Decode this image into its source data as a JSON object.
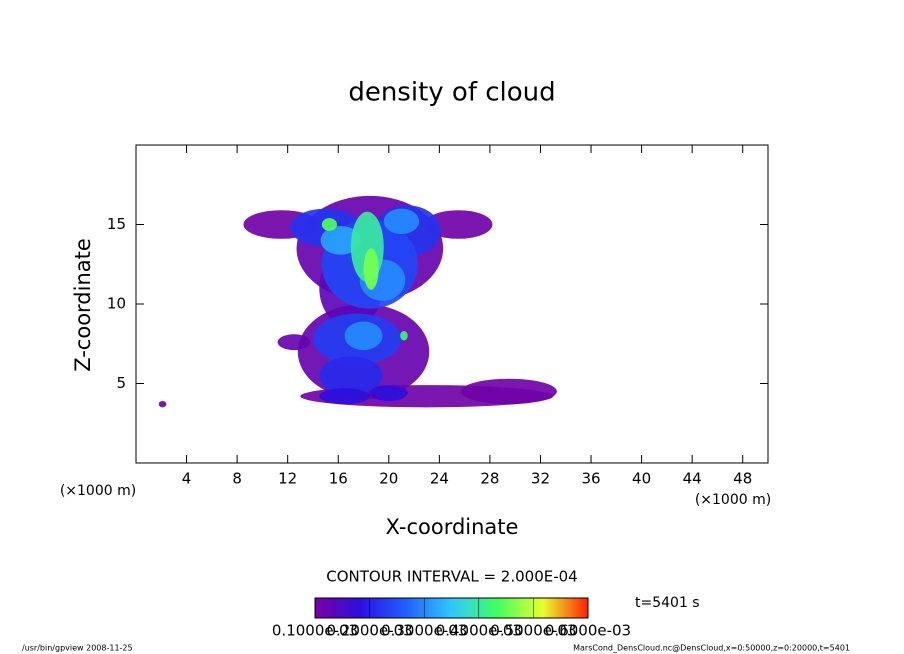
{
  "chart_data": {
    "type": "contour",
    "title": "density of cloud",
    "x_label": "X-coordinate",
    "y_label": "Z-coordinate",
    "x_unit": "(×1000 m)",
    "xlim": [
      0,
      50
    ],
    "ylim": [
      0,
      20
    ],
    "xticks": [
      4,
      8,
      12,
      16,
      20,
      24,
      28,
      32,
      36,
      40,
      44,
      48
    ],
    "yticks": [
      5,
      10,
      15
    ],
    "contour_interval": "CONTOUR INTERVAL = 2.000E-04",
    "time_label": "t=5401 s",
    "colormap": [
      "#7a00a0",
      "#2a10e0",
      "#2060ff",
      "#30c8ff",
      "#40ff60",
      "#e8ff30",
      "#ff2000"
    ],
    "clim": [
      0.0001,
      0.0006
    ],
    "cticks": [
      {
        "value": 0.0001,
        "label": "0.1000e-03"
      },
      {
        "value": 0.0002,
        "label": "0.2000e-03"
      },
      {
        "value": 0.0003,
        "label": "0.3000e-03"
      },
      {
        "value": 0.0004,
        "label": "0.4000e-03"
      },
      {
        "value": 0.0005,
        "label": "0.5000e-03"
      },
      {
        "value": 0.0006,
        "label": "0.6000e-03"
      }
    ],
    "patches": [
      {
        "x": 2.1,
        "z": 3.7,
        "rx": 0.3,
        "rz": 0.2,
        "value": 0.00011
      },
      {
        "x": 11.5,
        "z": 15.0,
        "rx": 3.0,
        "rz": 0.9,
        "value": 0.00011
      },
      {
        "x": 25.5,
        "z": 15.0,
        "rx": 2.7,
        "rz": 0.9,
        "value": 0.00011
      },
      {
        "x": 18.5,
        "z": 13.5,
        "rx": 5.8,
        "rz": 3.3,
        "value": 0.00012
      },
      {
        "x": 18.0,
        "z": 7.0,
        "rx": 5.2,
        "rz": 3.0,
        "value": 0.00012
      },
      {
        "x": 23.0,
        "z": 4.2,
        "rx": 10.0,
        "rz": 0.7,
        "value": 0.00011
      },
      {
        "x": 29.5,
        "z": 4.5,
        "rx": 3.8,
        "rz": 0.8,
        "value": 0.00011
      },
      {
        "x": 12.5,
        "z": 7.6,
        "rx": 1.3,
        "rz": 0.5,
        "value": 0.00012
      },
      {
        "x": 17.0,
        "z": 11.0,
        "rx": 2.5,
        "rz": 2.5,
        "value": 0.00013
      },
      {
        "x": 15.0,
        "z": 14.8,
        "rx": 2.8,
        "rz": 1.2,
        "value": 0.00022
      },
      {
        "x": 21.5,
        "z": 14.6,
        "rx": 2.6,
        "rz": 1.6,
        "value": 0.00022
      },
      {
        "x": 18.5,
        "z": 12.5,
        "rx": 3.8,
        "rz": 2.8,
        "value": 0.00024
      },
      {
        "x": 17.5,
        "z": 7.8,
        "rx": 3.5,
        "rz": 1.6,
        "value": 0.00023
      },
      {
        "x": 17.0,
        "z": 5.5,
        "rx": 2.5,
        "rz": 1.2,
        "value": 0.00021
      },
      {
        "x": 16.5,
        "z": 4.2,
        "rx": 2.0,
        "rz": 0.5,
        "value": 0.00018
      },
      {
        "x": 20.0,
        "z": 4.4,
        "rx": 1.5,
        "rz": 0.5,
        "value": 0.00018
      },
      {
        "x": 16.2,
        "z": 14.0,
        "rx": 1.6,
        "rz": 0.9,
        "value": 0.00032
      },
      {
        "x": 21.0,
        "z": 15.2,
        "rx": 1.4,
        "rz": 0.8,
        "value": 0.0003
      },
      {
        "x": 19.5,
        "z": 11.5,
        "rx": 1.8,
        "rz": 1.3,
        "value": 0.0003
      },
      {
        "x": 18.0,
        "z": 8.0,
        "rx": 1.5,
        "rz": 0.9,
        "value": 0.0003
      },
      {
        "x": 18.3,
        "z": 13.6,
        "rx": 1.3,
        "rz": 2.2,
        "value": 0.0004
      },
      {
        "x": 15.3,
        "z": 15.0,
        "rx": 0.6,
        "rz": 0.4,
        "value": 0.00044
      },
      {
        "x": 18.6,
        "z": 12.2,
        "rx": 0.6,
        "rz": 1.3,
        "value": 0.00046
      },
      {
        "x": 21.2,
        "z": 8.0,
        "rx": 0.3,
        "rz": 0.3,
        "value": 0.00042
      }
    ],
    "footer_left": "/usr/bin/gpview   2008-11-25",
    "footer_right": "MarsCond_DensCloud.nc@DensCloud,x=0:50000,z=0:20000,t=5401"
  }
}
